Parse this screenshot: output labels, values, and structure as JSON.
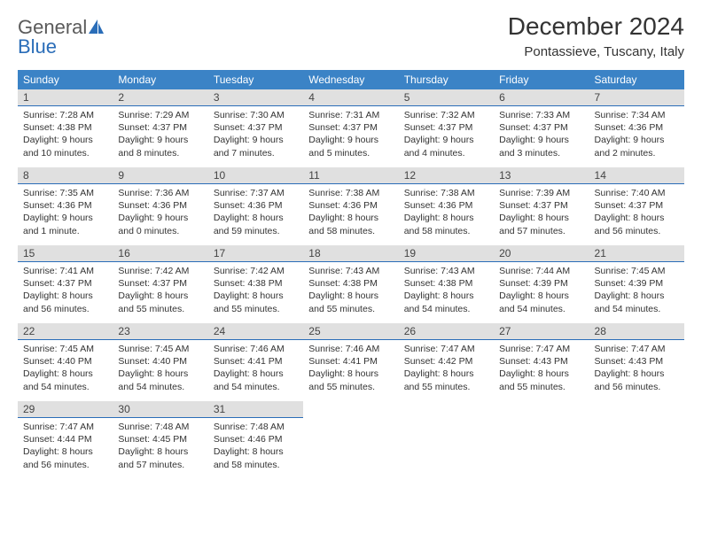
{
  "logo": {
    "text_general": "General",
    "text_blue": "Blue"
  },
  "title": "December 2024",
  "location": "Pontassieve, Tuscany, Italy",
  "colors": {
    "header_bg": "#3b83c6",
    "header_text": "#ffffff",
    "daynum_bg": "#e0e0e0",
    "daynum_border": "#2a6db8",
    "body_text": "#333333",
    "logo_gray": "#5a5a5a",
    "logo_blue": "#2a6db8",
    "page_bg": "#ffffff"
  },
  "typography": {
    "title_fontsize": 28,
    "location_fontsize": 15,
    "header_fontsize": 12,
    "daynum_fontsize": 12,
    "content_fontsize": 10.5,
    "logo_fontsize": 22
  },
  "weekdays": [
    "Sunday",
    "Monday",
    "Tuesday",
    "Wednesday",
    "Thursday",
    "Friday",
    "Saturday"
  ],
  "weeks": [
    [
      {
        "n": "1",
        "sr": "Sunrise: 7:28 AM",
        "ss": "Sunset: 4:38 PM",
        "dl": "Daylight: 9 hours and 10 minutes."
      },
      {
        "n": "2",
        "sr": "Sunrise: 7:29 AM",
        "ss": "Sunset: 4:37 PM",
        "dl": "Daylight: 9 hours and 8 minutes."
      },
      {
        "n": "3",
        "sr": "Sunrise: 7:30 AM",
        "ss": "Sunset: 4:37 PM",
        "dl": "Daylight: 9 hours and 7 minutes."
      },
      {
        "n": "4",
        "sr": "Sunrise: 7:31 AM",
        "ss": "Sunset: 4:37 PM",
        "dl": "Daylight: 9 hours and 5 minutes."
      },
      {
        "n": "5",
        "sr": "Sunrise: 7:32 AM",
        "ss": "Sunset: 4:37 PM",
        "dl": "Daylight: 9 hours and 4 minutes."
      },
      {
        "n": "6",
        "sr": "Sunrise: 7:33 AM",
        "ss": "Sunset: 4:37 PM",
        "dl": "Daylight: 9 hours and 3 minutes."
      },
      {
        "n": "7",
        "sr": "Sunrise: 7:34 AM",
        "ss": "Sunset: 4:36 PM",
        "dl": "Daylight: 9 hours and 2 minutes."
      }
    ],
    [
      {
        "n": "8",
        "sr": "Sunrise: 7:35 AM",
        "ss": "Sunset: 4:36 PM",
        "dl": "Daylight: 9 hours and 1 minute."
      },
      {
        "n": "9",
        "sr": "Sunrise: 7:36 AM",
        "ss": "Sunset: 4:36 PM",
        "dl": "Daylight: 9 hours and 0 minutes."
      },
      {
        "n": "10",
        "sr": "Sunrise: 7:37 AM",
        "ss": "Sunset: 4:36 PM",
        "dl": "Daylight: 8 hours and 59 minutes."
      },
      {
        "n": "11",
        "sr": "Sunrise: 7:38 AM",
        "ss": "Sunset: 4:36 PM",
        "dl": "Daylight: 8 hours and 58 minutes."
      },
      {
        "n": "12",
        "sr": "Sunrise: 7:38 AM",
        "ss": "Sunset: 4:36 PM",
        "dl": "Daylight: 8 hours and 58 minutes."
      },
      {
        "n": "13",
        "sr": "Sunrise: 7:39 AM",
        "ss": "Sunset: 4:37 PM",
        "dl": "Daylight: 8 hours and 57 minutes."
      },
      {
        "n": "14",
        "sr": "Sunrise: 7:40 AM",
        "ss": "Sunset: 4:37 PM",
        "dl": "Daylight: 8 hours and 56 minutes."
      }
    ],
    [
      {
        "n": "15",
        "sr": "Sunrise: 7:41 AM",
        "ss": "Sunset: 4:37 PM",
        "dl": "Daylight: 8 hours and 56 minutes."
      },
      {
        "n": "16",
        "sr": "Sunrise: 7:42 AM",
        "ss": "Sunset: 4:37 PM",
        "dl": "Daylight: 8 hours and 55 minutes."
      },
      {
        "n": "17",
        "sr": "Sunrise: 7:42 AM",
        "ss": "Sunset: 4:38 PM",
        "dl": "Daylight: 8 hours and 55 minutes."
      },
      {
        "n": "18",
        "sr": "Sunrise: 7:43 AM",
        "ss": "Sunset: 4:38 PM",
        "dl": "Daylight: 8 hours and 55 minutes."
      },
      {
        "n": "19",
        "sr": "Sunrise: 7:43 AM",
        "ss": "Sunset: 4:38 PM",
        "dl": "Daylight: 8 hours and 54 minutes."
      },
      {
        "n": "20",
        "sr": "Sunrise: 7:44 AM",
        "ss": "Sunset: 4:39 PM",
        "dl": "Daylight: 8 hours and 54 minutes."
      },
      {
        "n": "21",
        "sr": "Sunrise: 7:45 AM",
        "ss": "Sunset: 4:39 PM",
        "dl": "Daylight: 8 hours and 54 minutes."
      }
    ],
    [
      {
        "n": "22",
        "sr": "Sunrise: 7:45 AM",
        "ss": "Sunset: 4:40 PM",
        "dl": "Daylight: 8 hours and 54 minutes."
      },
      {
        "n": "23",
        "sr": "Sunrise: 7:45 AM",
        "ss": "Sunset: 4:40 PM",
        "dl": "Daylight: 8 hours and 54 minutes."
      },
      {
        "n": "24",
        "sr": "Sunrise: 7:46 AM",
        "ss": "Sunset: 4:41 PM",
        "dl": "Daylight: 8 hours and 54 minutes."
      },
      {
        "n": "25",
        "sr": "Sunrise: 7:46 AM",
        "ss": "Sunset: 4:41 PM",
        "dl": "Daylight: 8 hours and 55 minutes."
      },
      {
        "n": "26",
        "sr": "Sunrise: 7:47 AM",
        "ss": "Sunset: 4:42 PM",
        "dl": "Daylight: 8 hours and 55 minutes."
      },
      {
        "n": "27",
        "sr": "Sunrise: 7:47 AM",
        "ss": "Sunset: 4:43 PM",
        "dl": "Daylight: 8 hours and 55 minutes."
      },
      {
        "n": "28",
        "sr": "Sunrise: 7:47 AM",
        "ss": "Sunset: 4:43 PM",
        "dl": "Daylight: 8 hours and 56 minutes."
      }
    ],
    [
      {
        "n": "29",
        "sr": "Sunrise: 7:47 AM",
        "ss": "Sunset: 4:44 PM",
        "dl": "Daylight: 8 hours and 56 minutes."
      },
      {
        "n": "30",
        "sr": "Sunrise: 7:48 AM",
        "ss": "Sunset: 4:45 PM",
        "dl": "Daylight: 8 hours and 57 minutes."
      },
      {
        "n": "31",
        "sr": "Sunrise: 7:48 AM",
        "ss": "Sunset: 4:46 PM",
        "dl": "Daylight: 8 hours and 58 minutes."
      },
      null,
      null,
      null,
      null
    ]
  ]
}
